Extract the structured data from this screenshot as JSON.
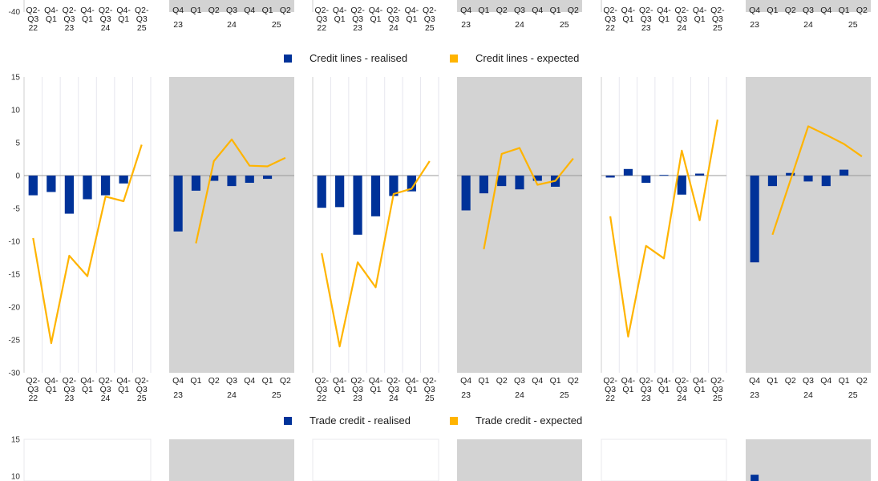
{
  "colors": {
    "realised": "#003299",
    "expected": "#FFB400",
    "shaded_panel": "#d3d3d3",
    "zero_line": "#9a9a9a",
    "grid": "#e6e6ee"
  },
  "top_strip": {
    "y_tick_label": "-40"
  },
  "legend_credit_lines": {
    "realised": "Credit lines - realised",
    "expected": "Credit lines - expected"
  },
  "legend_trade_credit": {
    "realised": "Trade credit - realised",
    "expected": "Trade credit - expected"
  },
  "bottom_strip": {
    "y_tick_labels": [
      "15",
      "10"
    ]
  },
  "axis_style_a": {
    "tick_lines": [
      [
        "Q2-",
        "Q3"
      ],
      [
        "Q4-",
        "Q1"
      ],
      [
        "Q2-",
        "Q3"
      ],
      [
        "Q4-",
        "Q1"
      ],
      [
        "Q2-",
        "Q3"
      ],
      [
        "Q4-",
        "Q1"
      ],
      [
        "Q2-",
        "Q3"
      ]
    ],
    "years": [
      {
        "label": "22",
        "at": 0
      },
      {
        "label": "23",
        "at": 2
      },
      {
        "label": "24",
        "at": 4
      },
      {
        "label": "25",
        "at": 6
      }
    ]
  },
  "axis_style_b": {
    "tick_lines": [
      [
        "Q4"
      ],
      [
        "Q1"
      ],
      [
        "Q2"
      ],
      [
        "Q3"
      ],
      [
        "Q4"
      ],
      [
        "Q1"
      ],
      [
        "Q2"
      ]
    ],
    "years": [
      {
        "label": "23",
        "at": 0
      },
      {
        "label": "24",
        "at": 3
      },
      {
        "label": "25",
        "at": 5.5
      }
    ]
  },
  "chart_data": [
    {
      "type": "bar+line",
      "panel": "credit-lines-1",
      "shaded": false,
      "ylim": [
        -30,
        15
      ],
      "yticks": [
        "15",
        "10",
        "5",
        "0",
        "-5",
        "-10",
        "-15",
        "-20",
        "-25",
        "-30"
      ],
      "categories": [
        "Q2-Q3 22",
        "Q4-Q1 23",
        "Q2-Q3 23",
        "Q4-Q1 24",
        "Q2-Q3 24",
        "Q4-Q1 25",
        "Q2-Q3 25"
      ],
      "series": [
        {
          "name": "Credit lines - realised",
          "kind": "bar",
          "values": [
            -3.0,
            -2.5,
            -5.8,
            -3.6,
            -3.0,
            -1.2,
            null
          ]
        },
        {
          "name": "Credit lines - expected",
          "kind": "line",
          "values": [
            -9.5,
            -25.5,
            -12.2,
            -15.3,
            -3.2,
            -3.9,
            4.7
          ]
        }
      ]
    },
    {
      "type": "bar+line",
      "panel": "credit-lines-2",
      "shaded": true,
      "ylim": [
        -30,
        15
      ],
      "categories": [
        "Q4 23",
        "Q1 24",
        "Q2 24",
        "Q3 24",
        "Q4 24",
        "Q1 25",
        "Q2 25"
      ],
      "series": [
        {
          "name": "Credit lines - realised",
          "kind": "bar",
          "values": [
            -8.5,
            -2.3,
            -0.8,
            -1.6,
            -1.1,
            -0.5,
            null
          ]
        },
        {
          "name": "Credit lines - expected",
          "kind": "line",
          "values": [
            null,
            -10.3,
            2.2,
            5.5,
            1.5,
            1.4,
            2.7
          ]
        }
      ]
    },
    {
      "type": "bar+line",
      "panel": "credit-lines-3",
      "shaded": false,
      "ylim": [
        -30,
        15
      ],
      "categories": [
        "Q2-Q3 22",
        "Q4-Q1 23",
        "Q2-Q3 23",
        "Q4-Q1 24",
        "Q2-Q3 24",
        "Q4-Q1 25",
        "Q2-Q3 25"
      ],
      "series": [
        {
          "name": "Credit lines - realised",
          "kind": "bar",
          "values": [
            -4.9,
            -4.8,
            -9.0,
            -6.2,
            -3.1,
            -2.4,
            null
          ]
        },
        {
          "name": "Credit lines - expected",
          "kind": "line",
          "values": [
            -11.8,
            -26.0,
            -13.2,
            -17.0,
            -2.8,
            -2.0,
            2.2
          ]
        }
      ]
    },
    {
      "type": "bar+line",
      "panel": "credit-lines-4",
      "shaded": true,
      "ylim": [
        -30,
        15
      ],
      "categories": [
        "Q4 23",
        "Q1 24",
        "Q2 24",
        "Q3 24",
        "Q4 24",
        "Q1 25",
        "Q2 25"
      ],
      "series": [
        {
          "name": "Credit lines - realised",
          "kind": "bar",
          "values": [
            -5.3,
            -2.7,
            -1.6,
            -2.1,
            -0.8,
            -1.7,
            null
          ]
        },
        {
          "name": "Credit lines - expected",
          "kind": "line",
          "values": [
            null,
            -11.2,
            3.3,
            4.2,
            -1.4,
            -0.8,
            2.6
          ]
        }
      ]
    },
    {
      "type": "bar+line",
      "panel": "credit-lines-5",
      "shaded": false,
      "ylim": [
        -30,
        15
      ],
      "categories": [
        "Q2-Q3 22",
        "Q4-Q1 23",
        "Q2-Q3 23",
        "Q4-Q1 24",
        "Q2-Q3 24",
        "Q4-Q1 25",
        "Q2-Q3 25"
      ],
      "series": [
        {
          "name": "Credit lines - realised",
          "kind": "bar",
          "values": [
            -0.3,
            1.0,
            -1.1,
            0.1,
            -2.9,
            0.3,
            null
          ]
        },
        {
          "name": "Credit lines - expected",
          "kind": "line",
          "values": [
            -6.2,
            -24.5,
            -10.7,
            -12.6,
            3.8,
            -6.8,
            8.5
          ]
        }
      ]
    },
    {
      "type": "bar+line",
      "panel": "credit-lines-6",
      "shaded": true,
      "ylim": [
        -30,
        15
      ],
      "categories": [
        "Q4 23",
        "Q1 24",
        "Q2 24",
        "Q3 24",
        "Q4 24",
        "Q1 25",
        "Q2 25"
      ],
      "series": [
        {
          "name": "Credit lines - realised",
          "kind": "bar",
          "values": [
            -13.2,
            -1.6,
            0.4,
            -0.9,
            -1.6,
            0.9,
            null
          ]
        },
        {
          "name": "Credit lines - expected",
          "kind": "line",
          "values": [
            null,
            -9.0,
            null,
            7.5,
            6.2,
            4.8,
            2.9
          ]
        }
      ]
    },
    {
      "type": "bar+line",
      "panel": "trade-credit-6",
      "shaded": true,
      "partial": true,
      "categories": [
        "Q4 23"
      ],
      "series": [
        {
          "name": "Trade credit - realised",
          "kind": "bar",
          "values": [
            10.2
          ]
        }
      ]
    }
  ]
}
